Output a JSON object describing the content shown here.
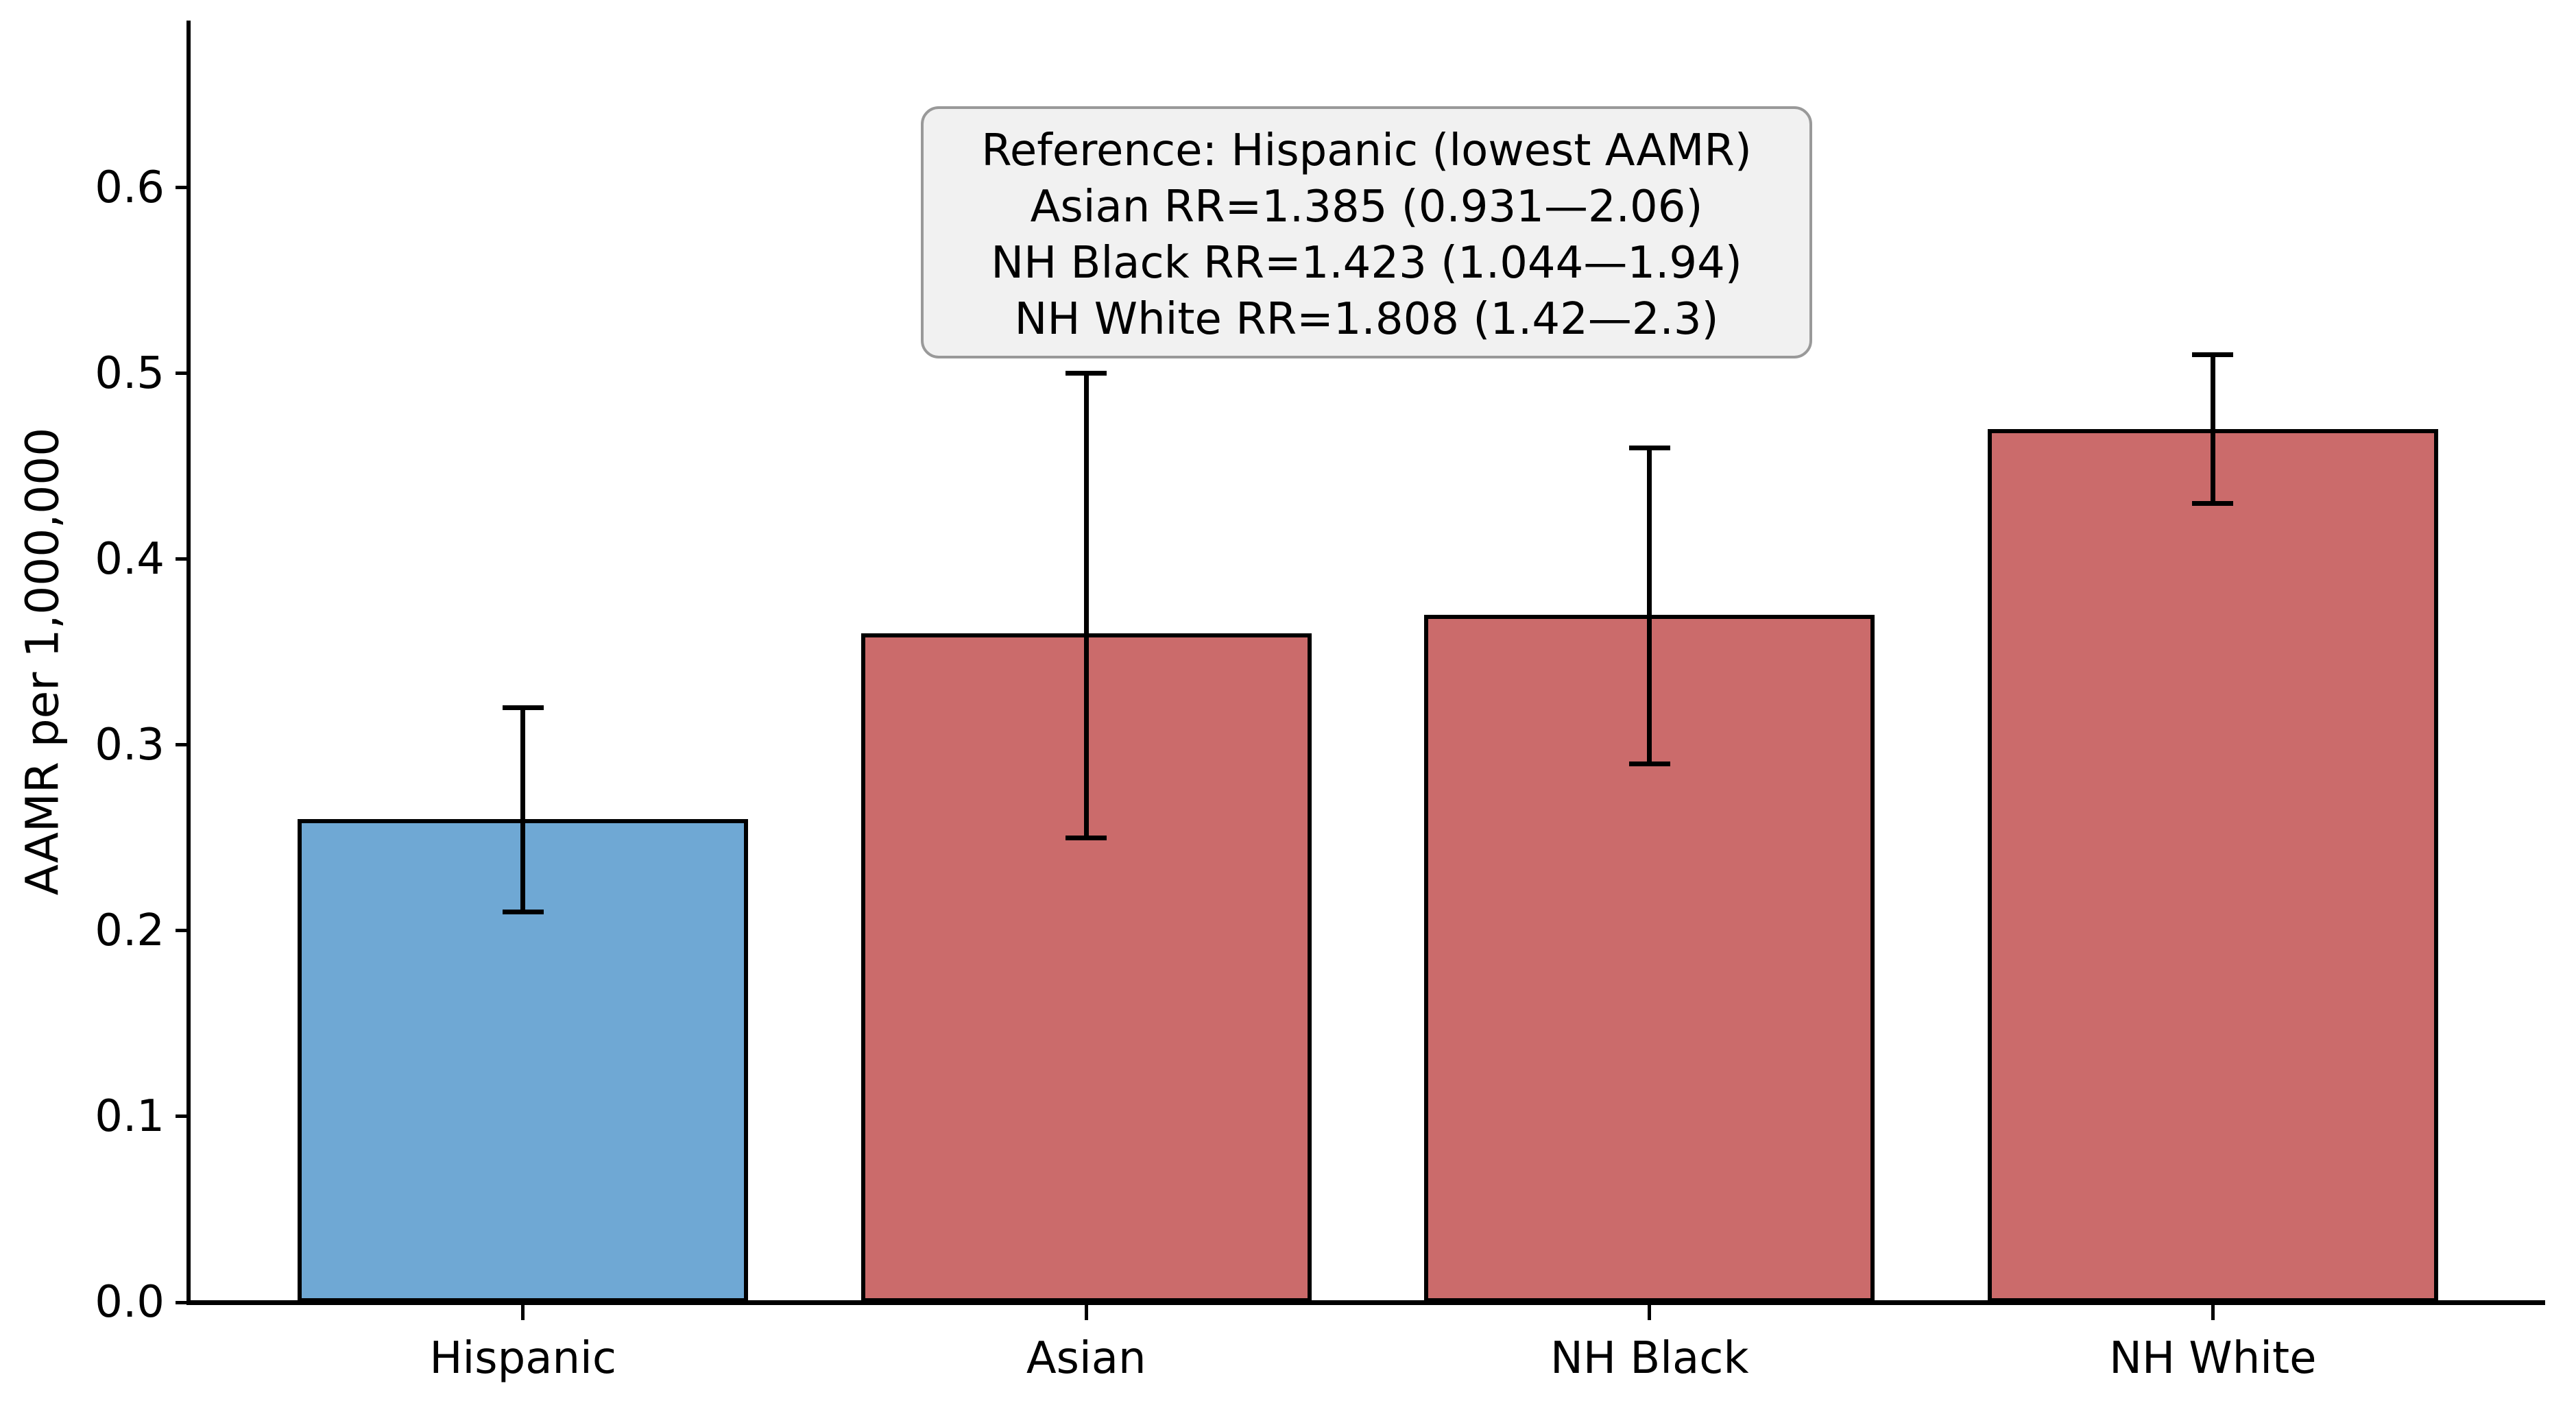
{
  "figure": {
    "background": "#ffffff",
    "text_color": "#000000"
  },
  "chart_data": {
    "type": "bar",
    "title": "",
    "categories": [
      "Hispanic",
      "Asian",
      "NH Black",
      "NH White"
    ],
    "values": [
      0.26,
      0.36,
      0.37,
      0.47
    ],
    "error_low": [
      0.21,
      0.25,
      0.29,
      0.43
    ],
    "error_high": [
      0.32,
      0.5,
      0.46,
      0.51
    ],
    "bar_colors": [
      "#6fa8d4",
      "#cb6b6b",
      "#cb6b6b",
      "#cb6b6b"
    ],
    "bar_edge_color": "#000000",
    "error_color": "#000000",
    "xlabel": "",
    "ylabel": "AAMR per 1,000,000",
    "yticks": [
      "0.0",
      "0.1",
      "0.2",
      "0.3",
      "0.4",
      "0.5",
      "0.6"
    ],
    "ytick_values": [
      0,
      0.1,
      0.2,
      0.3,
      0.4,
      0.5,
      0.6
    ],
    "ylim": [
      0,
      0.69
    ],
    "grid": false,
    "legend": "none",
    "annotation": {
      "lines": [
        "Reference: Hispanic (lowest AAMR)",
        "Asian RR=1.385 (0.931—2.06)",
        "NH Black RR=1.423 (1.044—1.94)",
        "NH White RR=1.808 (1.42—2.3)"
      ],
      "background": "#f1f1f1",
      "border_color": "#999999"
    }
  }
}
